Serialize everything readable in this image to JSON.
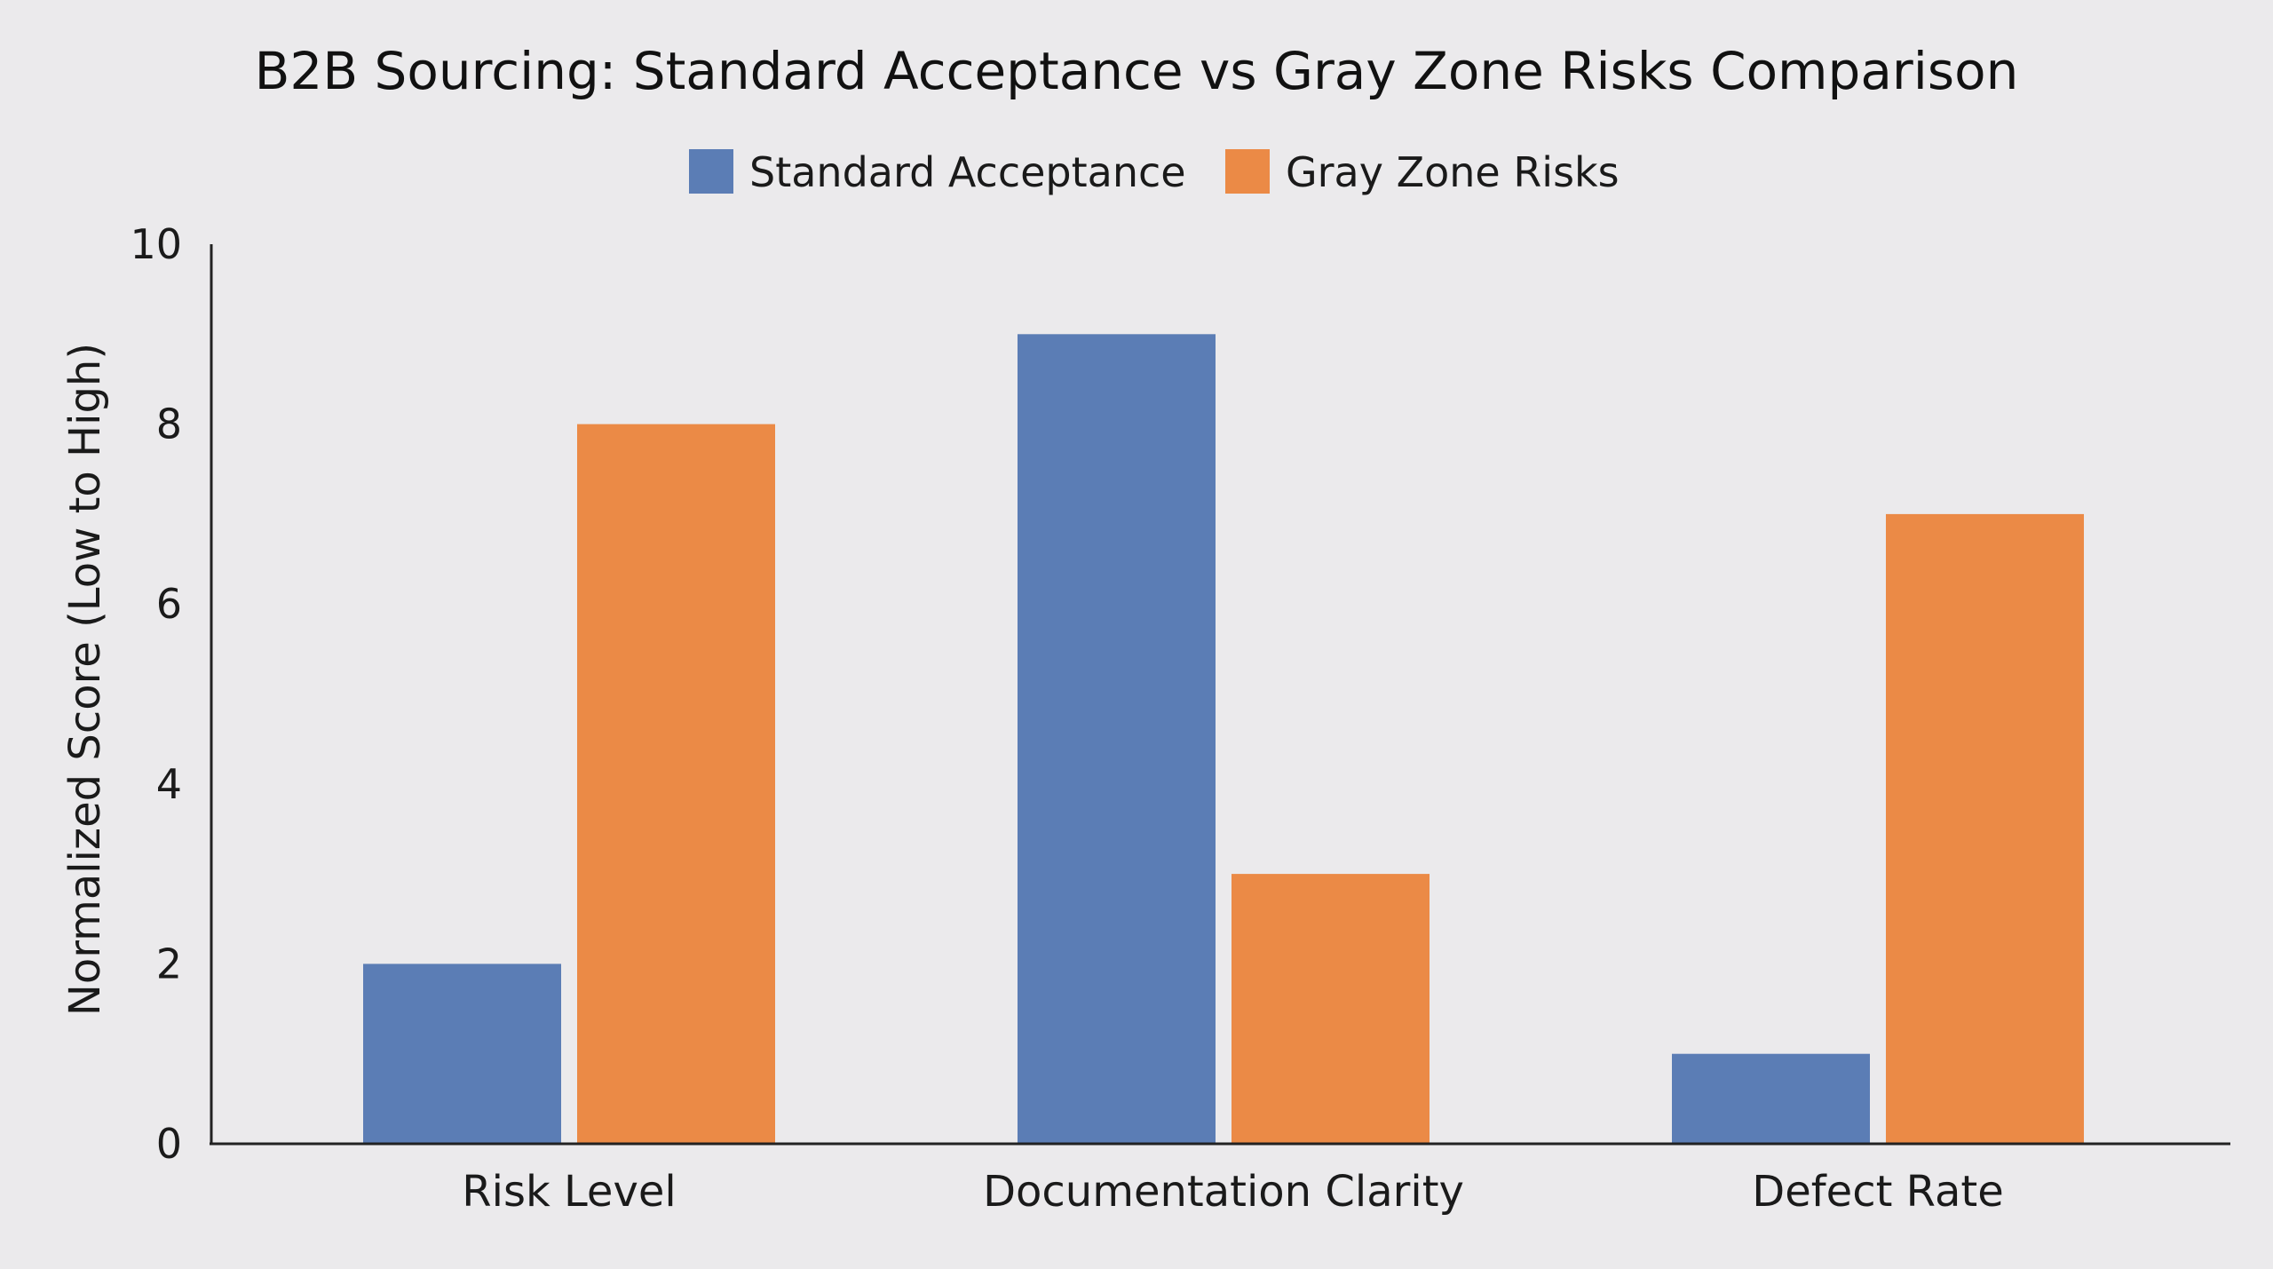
{
  "chart_data": {
    "type": "bar",
    "title": "B2B Sourcing: Standard Acceptance vs Gray Zone Risks Comparison",
    "xlabel": "",
    "ylabel": "Normalized Score (Low to High)",
    "ylim": [
      0,
      10
    ],
    "yticks": [
      "0",
      "2",
      "4",
      "6",
      "8",
      "10"
    ],
    "categories": [
      "Risk Level",
      "Documentation Clarity",
      "Defect Rate"
    ],
    "series": [
      {
        "name": "Standard Acceptance",
        "color": "#5b7db5",
        "values": [
          2,
          9,
          1
        ]
      },
      {
        "name": "Gray Zone Risks",
        "color": "#eb8a46",
        "values": [
          8,
          3,
          7
        ]
      }
    ],
    "legend_position": "top-center",
    "grid": false
  }
}
